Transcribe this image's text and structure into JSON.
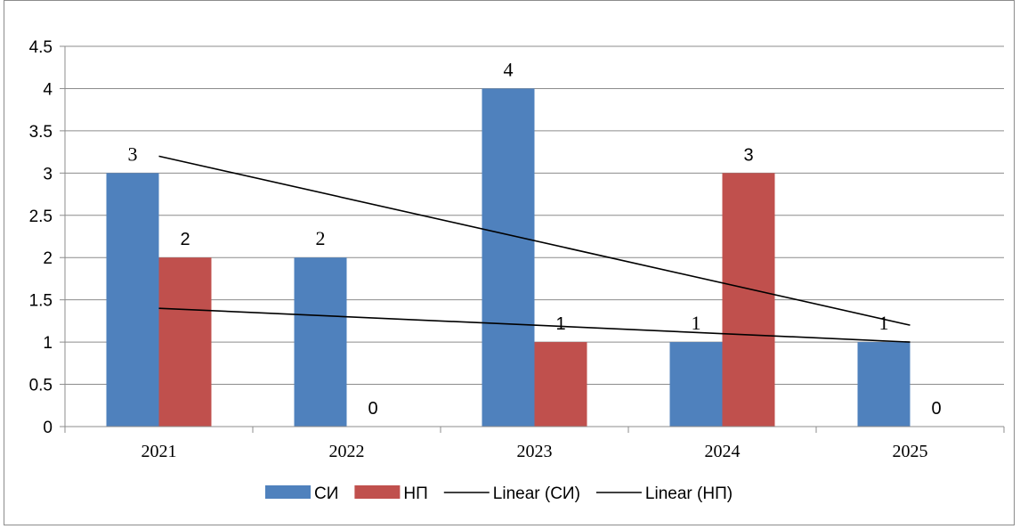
{
  "chart_data": {
    "type": "bar",
    "categories": [
      "2021",
      "2022",
      "2023",
      "2024",
      "2025"
    ],
    "series": [
      {
        "name": "СИ",
        "values": [
          3,
          2,
          4,
          1,
          1
        ],
        "color": "#4F81BD",
        "labels": [
          "3",
          "2",
          "4",
          "1",
          "1"
        ],
        "label_font": "serif"
      },
      {
        "name": "НП",
        "values": [
          2,
          0,
          1,
          3,
          0
        ],
        "color": "#C0504D",
        "labels": [
          "2",
          "0",
          "1",
          "3",
          "0"
        ],
        "label_font": "sans"
      }
    ],
    "trendlines": [
      {
        "name": "Linear (СИ)",
        "start": 3.2,
        "end": 1.2,
        "color": "#000000"
      },
      {
        "name": "Linear (НП)",
        "start": 1.4,
        "end": 1.0,
        "color": "#000000"
      }
    ],
    "ylim": [
      0,
      4.5
    ],
    "yticks": [
      "0",
      "0.5",
      "1",
      "1.5",
      "2",
      "2.5",
      "3",
      "3.5",
      "4",
      "4.5"
    ],
    "grid": true,
    "legend": "bottom",
    "title": "",
    "xlabel": "",
    "ylabel": ""
  }
}
